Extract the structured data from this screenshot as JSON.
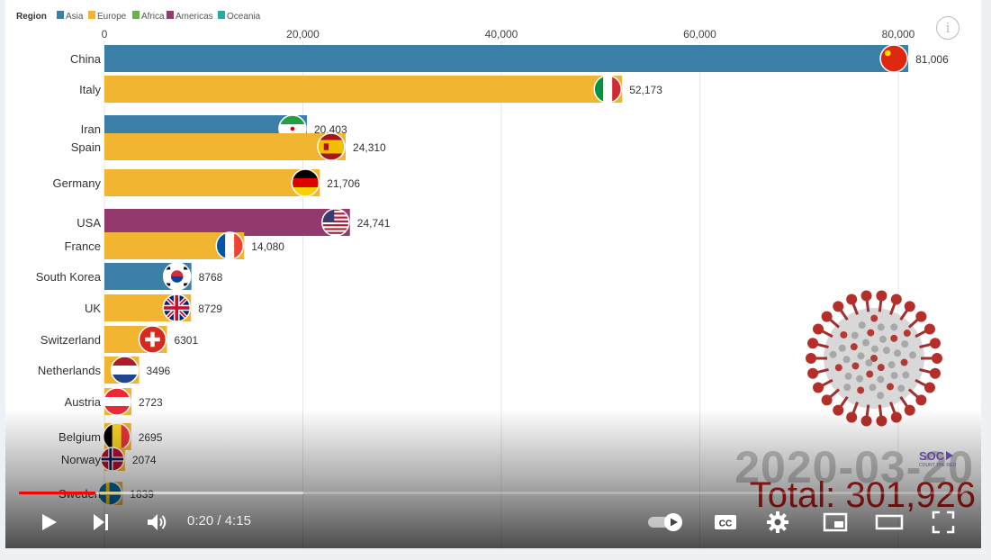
{
  "legend": {
    "title": "Region",
    "items": [
      {
        "label": "Asia",
        "color": "#3b7ea6"
      },
      {
        "label": "Europe",
        "color": "#f2b531"
      },
      {
        "label": "Africa",
        "color": "#6ab04c"
      },
      {
        "label": "Americas",
        "color": "#94396e"
      },
      {
        "label": "Oceania",
        "color": "#2ea8a3"
      }
    ]
  },
  "chart_data": {
    "type": "bar",
    "orientation": "horizontal",
    "xlim": [
      0,
      80000
    ],
    "ticks": [
      {
        "value": 0,
        "label": "0"
      },
      {
        "value": 20000,
        "label": "20,000"
      },
      {
        "value": 40000,
        "label": "40,000"
      },
      {
        "value": 60000,
        "label": "60,000"
      },
      {
        "value": 80000,
        "label": "80,000"
      }
    ],
    "bars": [
      {
        "name": "China",
        "value": 81006,
        "label": "81,006",
        "region": "Asia",
        "flag": "china-flag"
      },
      {
        "name": "Italy",
        "value": 52173,
        "label": "52,173",
        "region": "Europe",
        "flag": "italy-flag"
      },
      {
        "name": "Iran",
        "value": 20403,
        "label": "20,403",
        "region": "Asia",
        "flag": "iran-flag"
      },
      {
        "name": "Spain",
        "value": 24310,
        "label": "24,310",
        "region": "Europe",
        "flag": "spain-flag"
      },
      {
        "name": "Germany",
        "value": 21706,
        "label": "21,706",
        "region": "Europe",
        "flag": "germany-flag"
      },
      {
        "name": "USA",
        "value": 24741,
        "label": "24,741",
        "region": "Americas",
        "flag": "usa-flag"
      },
      {
        "name": "France",
        "value": 14080,
        "label": "14,080",
        "region": "Europe",
        "flag": "france-flag"
      },
      {
        "name": "South Korea",
        "value": 8768,
        "label": "8768",
        "region": "Asia",
        "flag": "south-korea-flag"
      },
      {
        "name": "UK",
        "value": 8729,
        "label": "8729",
        "region": "Europe",
        "flag": "uk-flag"
      },
      {
        "name": "Switzerland",
        "value": 6301,
        "label": "6301",
        "region": "Europe",
        "flag": "switzerland-flag"
      },
      {
        "name": "Netherlands",
        "value": 3496,
        "label": "3496",
        "region": "Europe",
        "flag": "netherlands-flag"
      },
      {
        "name": "Austria",
        "value": 2723,
        "label": "2723",
        "region": "Europe",
        "flag": "austria-flag"
      },
      {
        "name": "Belgium",
        "value": 2695,
        "label": "2695",
        "region": "Europe",
        "flag": "belgium-flag"
      },
      {
        "name": "Norway",
        "value": 2074,
        "label": "2074",
        "region": "Europe",
        "flag": "norway-flag"
      },
      {
        "name": "Sweden",
        "value": 1839,
        "label": "1839",
        "region": "Europe",
        "flag": "sweden-flag"
      }
    ],
    "date": "2020-03-20",
    "total": "Total: 301,926"
  },
  "logo": {
    "text": "SOC",
    "subtext": "COUNT THE RED"
  },
  "player": {
    "progress_fraction": 0.0804,
    "loaded_fraction": 0.3,
    "time_current": "0:20",
    "time_separator": " / ",
    "time_total": "4:15",
    "icons": [
      "play-icon",
      "next-icon",
      "volume-icon",
      "autoplay-toggle-icon",
      "captions-icon",
      "settings-icon",
      "miniplayer-icon",
      "theater-mode-icon",
      "fullscreen-icon"
    ]
  }
}
